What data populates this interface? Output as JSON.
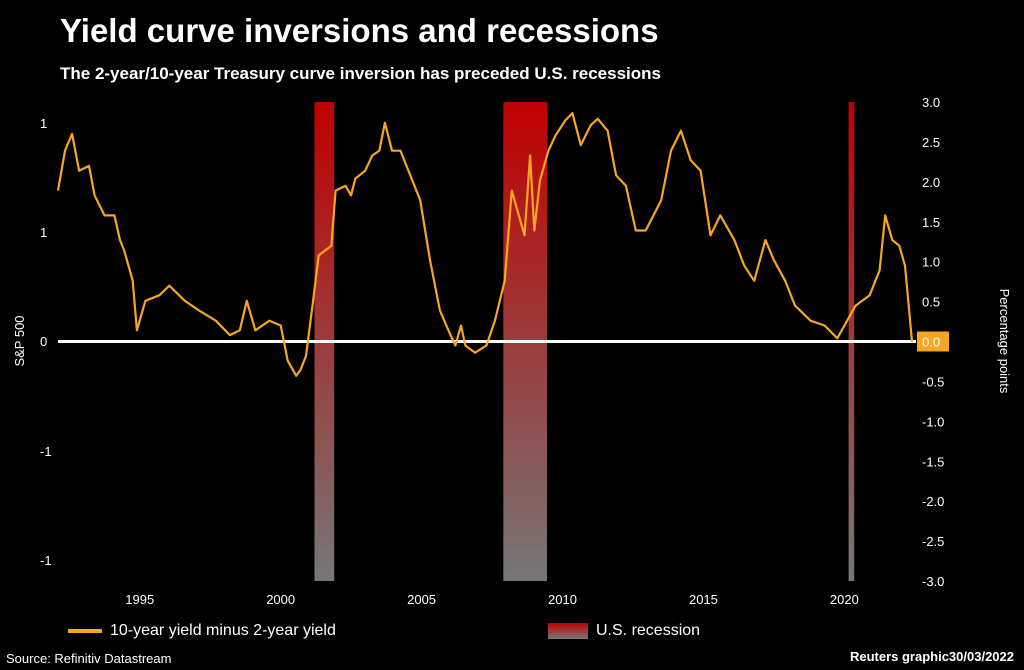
{
  "header": {
    "title": "Yield curve inversions and recessions",
    "subtitle": "The 2-year/10-year Treasury curve inversion has preceded U.S. recessions"
  },
  "footer": {
    "source": "Source: Refinitiv Datastream",
    "credit": "Reuters graphic30/03/2022"
  },
  "chart_data": {
    "type": "line",
    "title": "Yield curve inversions and recessions",
    "ylabel_left": "S&P 500",
    "ylabel_right": "Percentage points",
    "left_tick_labels": [
      "1",
      "1",
      "0",
      "-1",
      "-1"
    ],
    "right_ticks": [
      3.0,
      2.5,
      2.0,
      1.5,
      1.0,
      0.5,
      0.0,
      -0.5,
      -1.0,
      -1.5,
      -2.0,
      -2.5,
      -3.0
    ],
    "x_ticks": [
      1995,
      2000,
      2005,
      2010,
      2015,
      2020
    ],
    "xlim": [
      1992.1,
      2022.4
    ],
    "ylim": [
      -3,
      3
    ],
    "last_value_label": "0.0",
    "colors": {
      "line": "#f5a623",
      "zero": "#ffffff",
      "recession_top": "#c00000",
      "recession_bottom": "#777777",
      "badge": "#f5a623"
    },
    "legend": [
      {
        "label": "10-year yield minus 2-year yield",
        "type": "line"
      },
      {
        "label": "U.S. recession",
        "type": "area"
      }
    ],
    "recessions": [
      [
        2001.2,
        2001.9
      ],
      [
        2007.9,
        2009.45
      ],
      [
        2020.15,
        2020.35
      ]
    ],
    "series": [
      {
        "name": "10-year yield minus 2-year yield",
        "points": [
          [
            1992.1,
            1.89
          ],
          [
            1992.35,
            2.39
          ],
          [
            1992.6,
            2.6
          ],
          [
            1992.85,
            2.14
          ],
          [
            1993.2,
            2.2
          ],
          [
            1993.4,
            1.83
          ],
          [
            1993.75,
            1.58
          ],
          [
            1994.1,
            1.58
          ],
          [
            1994.3,
            1.27
          ],
          [
            1994.45,
            1.14
          ],
          [
            1994.75,
            0.76
          ],
          [
            1994.9,
            0.14
          ],
          [
            1995.2,
            0.51
          ],
          [
            1995.7,
            0.58
          ],
          [
            1996.05,
            0.7
          ],
          [
            1996.6,
            0.51
          ],
          [
            1997.1,
            0.39
          ],
          [
            1997.7,
            0.26
          ],
          [
            1998.2,
            0.08
          ],
          [
            1998.55,
            0.14
          ],
          [
            1998.8,
            0.51
          ],
          [
            1999.1,
            0.14
          ],
          [
            1999.6,
            0.26
          ],
          [
            2000.0,
            0.2
          ],
          [
            2000.25,
            -0.24
          ],
          [
            2000.55,
            -0.43
          ],
          [
            2000.7,
            -0.36
          ],
          [
            2000.9,
            -0.18
          ],
          [
            2001.15,
            0.51
          ],
          [
            2001.35,
            1.08
          ],
          [
            2001.8,
            1.2
          ],
          [
            2001.95,
            1.89
          ],
          [
            2002.3,
            1.95
          ],
          [
            2002.5,
            1.83
          ],
          [
            2002.65,
            2.04
          ],
          [
            2003.0,
            2.14
          ],
          [
            2003.25,
            2.33
          ],
          [
            2003.5,
            2.39
          ],
          [
            2003.7,
            2.74
          ],
          [
            2003.95,
            2.39
          ],
          [
            2004.25,
            2.39
          ],
          [
            2004.6,
            2.08
          ],
          [
            2004.95,
            1.77
          ],
          [
            2005.3,
            1.02
          ],
          [
            2005.65,
            0.39
          ],
          [
            2005.95,
            0.14
          ],
          [
            2006.2,
            -0.05
          ],
          [
            2006.4,
            0.2
          ],
          [
            2006.55,
            -0.05
          ],
          [
            2006.9,
            -0.14
          ],
          [
            2007.3,
            -0.05
          ],
          [
            2007.6,
            0.26
          ],
          [
            2007.95,
            0.76
          ],
          [
            2008.2,
            1.89
          ],
          [
            2008.4,
            1.64
          ],
          [
            2008.65,
            1.33
          ],
          [
            2008.85,
            2.33
          ],
          [
            2009.0,
            1.39
          ],
          [
            2009.2,
            2.02
          ],
          [
            2009.5,
            2.39
          ],
          [
            2009.75,
            2.58
          ],
          [
            2010.1,
            2.77
          ],
          [
            2010.35,
            2.86
          ],
          [
            2010.65,
            2.46
          ],
          [
            2011.0,
            2.71
          ],
          [
            2011.25,
            2.79
          ],
          [
            2011.6,
            2.64
          ],
          [
            2011.9,
            2.08
          ],
          [
            2012.25,
            1.95
          ],
          [
            2012.6,
            1.39
          ],
          [
            2012.95,
            1.39
          ],
          [
            2013.5,
            1.77
          ],
          [
            2013.85,
            2.39
          ],
          [
            2014.2,
            2.64
          ],
          [
            2014.55,
            2.27
          ],
          [
            2014.9,
            2.14
          ],
          [
            2015.25,
            1.33
          ],
          [
            2015.6,
            1.58
          ],
          [
            2016.1,
            1.27
          ],
          [
            2016.45,
            0.95
          ],
          [
            2016.8,
            0.76
          ],
          [
            2017.2,
            1.27
          ],
          [
            2017.5,
            1.02
          ],
          [
            2017.9,
            0.76
          ],
          [
            2018.25,
            0.45
          ],
          [
            2018.8,
            0.26
          ],
          [
            2019.3,
            0.2
          ],
          [
            2019.75,
            0.04
          ],
          [
            2020.0,
            0.2
          ],
          [
            2020.4,
            0.45
          ],
          [
            2020.9,
            0.58
          ],
          [
            2021.25,
            0.89
          ],
          [
            2021.45,
            1.58
          ],
          [
            2021.7,
            1.27
          ],
          [
            2021.95,
            1.2
          ],
          [
            2022.15,
            0.95
          ],
          [
            2022.4,
            0.0
          ]
        ]
      }
    ]
  }
}
